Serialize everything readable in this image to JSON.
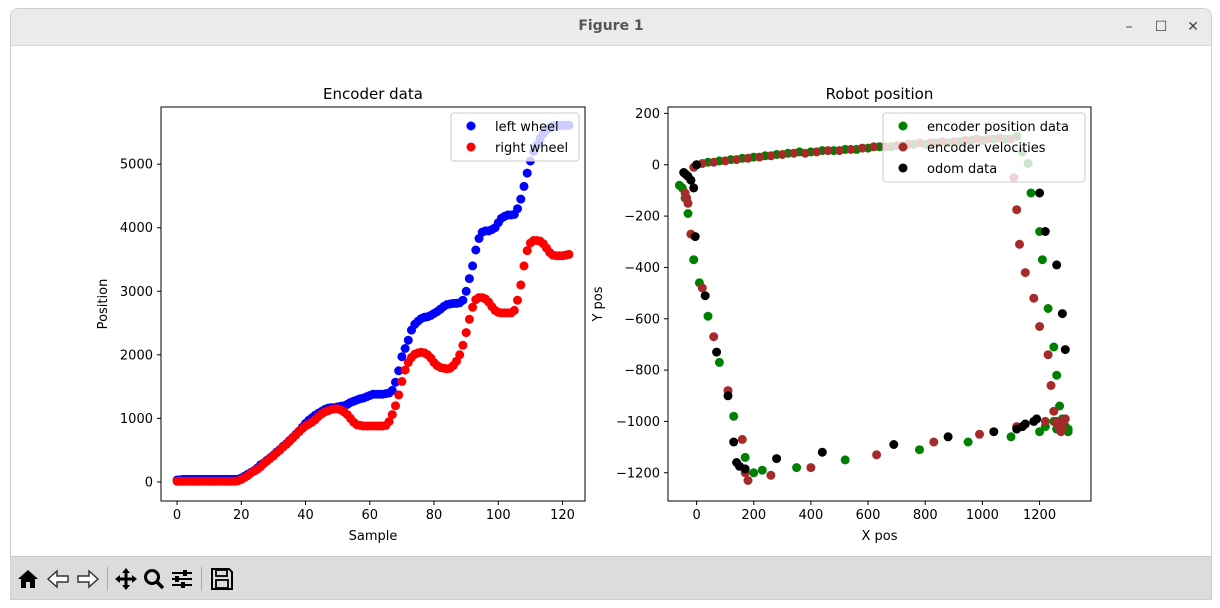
{
  "window": {
    "title": "Figure 1",
    "minimize_glyph": "–",
    "maximize_glyph": "☐",
    "close_glyph": "✕"
  },
  "toolbar": {
    "buttons": [
      "home-icon",
      "back-arrow-icon",
      "forward-arrow-icon",
      "pan-icon",
      "zoom-icon",
      "subplots-icon",
      "save-icon"
    ]
  },
  "colors": {
    "left": "#0000ff",
    "right": "#ff0000",
    "enc_pos": "#008000",
    "enc_vel": "#a52a2a",
    "odom": "#000000"
  },
  "chart_data": [
    {
      "type": "scatter",
      "title": "Encoder data",
      "xlabel": "Sample",
      "ylabel": "Position",
      "xlim": [
        -5,
        127
      ],
      "ylim": [
        -300,
        5900
      ],
      "xticks": [
        0,
        20,
        40,
        60,
        80,
        100,
        120
      ],
      "yticks": [
        0,
        1000,
        2000,
        3000,
        4000,
        5000
      ],
      "grid": false,
      "legend_position": "top-right",
      "series": [
        {
          "name": "left wheel",
          "color": "#0000ff",
          "x": [
            0,
            1,
            2,
            3,
            4,
            5,
            6,
            7,
            8,
            9,
            10,
            11,
            12,
            13,
            14,
            15,
            16,
            17,
            18,
            19,
            20,
            21,
            22,
            23,
            24,
            25,
            26,
            27,
            28,
            29,
            30,
            31,
            32,
            33,
            34,
            35,
            36,
            37,
            38,
            39,
            40,
            41,
            42,
            43,
            44,
            45,
            46,
            47,
            48,
            49,
            50,
            51,
            52,
            53,
            54,
            55,
            56,
            57,
            58,
            59,
            60,
            61,
            62,
            63,
            64,
            65,
            66,
            67,
            68,
            69,
            70,
            71,
            72,
            73,
            74,
            75,
            76,
            77,
            78,
            79,
            80,
            81,
            82,
            83,
            84,
            85,
            86,
            87,
            88,
            89,
            90,
            91,
            92,
            93,
            94,
            95,
            96,
            97,
            98,
            99,
            100,
            101,
            102,
            103,
            104,
            105,
            106,
            107,
            108,
            109,
            110,
            111,
            112,
            113,
            114,
            115,
            116,
            117,
            118,
            119,
            120,
            121,
            122
          ],
          "y": [
            30,
            35,
            40,
            40,
            40,
            40,
            40,
            40,
            40,
            40,
            40,
            40,
            40,
            40,
            40,
            40,
            40,
            40,
            40,
            45,
            60,
            90,
            120,
            150,
            180,
            220,
            270,
            300,
            340,
            380,
            420,
            470,
            510,
            560,
            600,
            650,
            700,
            750,
            800,
            860,
            920,
            970,
            1010,
            1050,
            1080,
            1110,
            1140,
            1160,
            1170,
            1170,
            1180,
            1190,
            1200,
            1220,
            1250,
            1270,
            1290,
            1310,
            1320,
            1340,
            1360,
            1380,
            1380,
            1380,
            1380,
            1390,
            1400,
            1440,
            1570,
            1750,
            1970,
            2100,
            2230,
            2390,
            2480,
            2530,
            2570,
            2590,
            2600,
            2620,
            2650,
            2680,
            2720,
            2760,
            2790,
            2800,
            2810,
            2810,
            2820,
            2860,
            3000,
            3200,
            3400,
            3650,
            3830,
            3930,
            3950,
            3950,
            3970,
            4000,
            4080,
            4150,
            4180,
            4200,
            4200,
            4210,
            4300,
            4450,
            4650,
            4860,
            5050,
            5200,
            5300,
            5400,
            5480,
            5540,
            5570,
            5600,
            5610,
            5610,
            5610,
            5610,
            5610
          ]
        },
        {
          "name": "right wheel",
          "color": "#ff0000",
          "x": [
            0,
            1,
            2,
            3,
            4,
            5,
            6,
            7,
            8,
            9,
            10,
            11,
            12,
            13,
            14,
            15,
            16,
            17,
            18,
            19,
            20,
            21,
            22,
            23,
            24,
            25,
            26,
            27,
            28,
            29,
            30,
            31,
            32,
            33,
            34,
            35,
            36,
            37,
            38,
            39,
            40,
            41,
            42,
            43,
            44,
            45,
            46,
            47,
            48,
            49,
            50,
            51,
            52,
            53,
            54,
            55,
            56,
            57,
            58,
            59,
            60,
            61,
            62,
            63,
            64,
            65,
            66,
            67,
            68,
            69,
            70,
            71,
            72,
            73,
            74,
            75,
            76,
            77,
            78,
            79,
            80,
            81,
            82,
            83,
            84,
            85,
            86,
            87,
            88,
            89,
            90,
            91,
            92,
            93,
            94,
            95,
            96,
            97,
            98,
            99,
            100,
            101,
            102,
            103,
            104,
            105,
            106,
            107,
            108,
            109,
            110,
            111,
            112,
            113,
            114,
            115,
            116,
            117,
            118,
            119,
            120,
            121,
            122
          ],
          "y": [
            10,
            10,
            10,
            10,
            10,
            10,
            10,
            10,
            10,
            10,
            10,
            10,
            10,
            10,
            10,
            10,
            10,
            10,
            10,
            20,
            40,
            70,
            100,
            140,
            170,
            200,
            240,
            290,
            330,
            370,
            410,
            460,
            500,
            550,
            590,
            640,
            690,
            740,
            790,
            840,
            880,
            910,
            940,
            980,
            1030,
            1070,
            1100,
            1120,
            1140,
            1150,
            1150,
            1130,
            1100,
            1060,
            1000,
            940,
            900,
            890,
            880,
            880,
            880,
            880,
            880,
            880,
            880,
            890,
            950,
            1060,
            1200,
            1370,
            1580,
            1760,
            1880,
            1960,
            2010,
            2030,
            2040,
            2030,
            2000,
            1950,
            1880,
            1830,
            1800,
            1790,
            1780,
            1790,
            1830,
            1900,
            2000,
            2150,
            2350,
            2560,
            2750,
            2870,
            2900,
            2900,
            2880,
            2830,
            2760,
            2700,
            2670,
            2660,
            2660,
            2660,
            2660,
            2700,
            2860,
            3100,
            3400,
            3640,
            3760,
            3800,
            3800,
            3790,
            3750,
            3680,
            3610,
            3570,
            3560,
            3560,
            3560,
            3570,
            3580
          ]
        }
      ]
    },
    {
      "type": "scatter",
      "title": "Robot position",
      "xlabel": "X pos",
      "ylabel": "Y pos",
      "xlim": [
        -100,
        1380
      ],
      "ylim": [
        -1310,
        225
      ],
      "xticks": [
        0,
        200,
        400,
        600,
        800,
        1000,
        1200
      ],
      "yticks": [
        200,
        0,
        -200,
        -400,
        -600,
        -800,
        -1000,
        -1200
      ],
      "grid": false,
      "legend_position": "top-right",
      "series": [
        {
          "name": "encoder position data",
          "color": "#008000",
          "x": [
            0,
            40,
            80,
            120,
            160,
            200,
            240,
            280,
            320,
            360,
            400,
            440,
            480,
            520,
            560,
            600,
            640,
            680,
            720,
            760,
            800,
            840,
            880,
            920,
            960,
            1000,
            1040,
            1080,
            1120,
            1140,
            1160,
            1170,
            1200,
            1210,
            1230,
            1250,
            1260,
            1270,
            1280,
            1290,
            1300,
            -60,
            -50,
            -40,
            -30,
            -10,
            10,
            40,
            80,
            130,
            170,
            200,
            230,
            350,
            520,
            780,
            950,
            1100,
            1200,
            1260,
            1290,
            1300,
            1280,
            1250,
            1220
          ],
          "y": [
            0,
            10,
            15,
            20,
            25,
            30,
            35,
            40,
            45,
            50,
            50,
            55,
            55,
            60,
            60,
            65,
            70,
            70,
            75,
            80,
            80,
            85,
            85,
            90,
            95,
            95,
            100,
            100,
            110,
            50,
            5,
            -110,
            -260,
            -370,
            -560,
            -710,
            -820,
            -940,
            -990,
            -1020,
            -1030,
            -80,
            -90,
            -130,
            -190,
            -370,
            -460,
            -590,
            -770,
            -980,
            -1140,
            -1200,
            -1190,
            -1180,
            -1150,
            -1110,
            -1080,
            -1060,
            -1040,
            -1030,
            -1020,
            -1040,
            -1010,
            -1000,
            -1020
          ]
        },
        {
          "name": "encoder velocities",
          "color": "#a52a2a",
          "x": [
            -10,
            20,
            60,
            100,
            140,
            180,
            220,
            260,
            300,
            340,
            380,
            420,
            460,
            500,
            540,
            580,
            620,
            660,
            700,
            740,
            780,
            820,
            860,
            900,
            940,
            980,
            1020,
            1060,
            1100,
            1110,
            1120,
            1130,
            1150,
            1180,
            1200,
            1230,
            1240,
            1250,
            1260,
            1270,
            1275,
            1280,
            1290,
            -40,
            -35,
            -30,
            -20,
            20,
            60,
            110,
            160,
            170,
            180,
            260,
            400,
            630,
            830,
            990,
            1120,
            1220,
            1260,
            1270,
            1280
          ],
          "y": [
            -10,
            5,
            10,
            15,
            20,
            25,
            30,
            35,
            40,
            45,
            45,
            50,
            55,
            55,
            60,
            65,
            70,
            70,
            75,
            80,
            85,
            85,
            90,
            90,
            95,
            100,
            100,
            105,
            100,
            -50,
            -175,
            -310,
            -420,
            -520,
            -630,
            -740,
            -860,
            -960,
            -1010,
            -1030,
            -1040,
            -1020,
            -990,
            -110,
            -130,
            -150,
            -270,
            -480,
            -670,
            -880,
            -1070,
            -1200,
            -1230,
            -1210,
            -1180,
            -1130,
            -1080,
            -1050,
            -1020,
            -1000,
            -1000,
            -1020,
            -1000
          ]
        },
        {
          "name": "odom data",
          "color": "#000000",
          "x": [
            -45,
            -40,
            -35,
            -30,
            -20,
            -10,
            0,
            30,
            70,
            110,
            130,
            140,
            150,
            170,
            280,
            440,
            690,
            880,
            1040,
            1120,
            1140,
            1150,
            1180,
            1190,
            1200,
            1220,
            1260,
            1280,
            1290,
            -5
          ],
          "y": [
            -30,
            -35,
            -40,
            -45,
            -60,
            -90,
            0,
            -510,
            -730,
            -900,
            -1080,
            -1160,
            -1175,
            -1185,
            -1145,
            -1120,
            -1090,
            -1060,
            -1040,
            -1030,
            -1020,
            -1010,
            -1000,
            -990,
            -110,
            -260,
            -390,
            -580,
            -720,
            -280
          ]
        }
      ]
    }
  ]
}
